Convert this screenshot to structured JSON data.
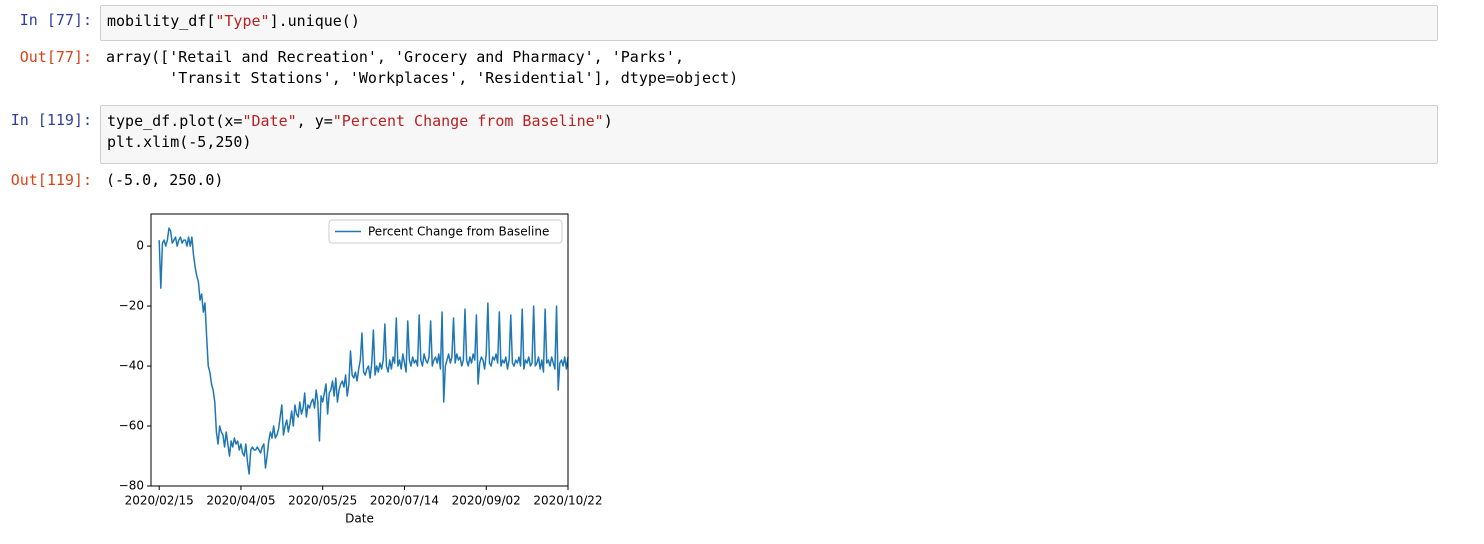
{
  "cells": [
    {
      "input_prompt": "In [77]:",
      "code": [
        [
          "mobility_df[",
          "\"Type\"",
          "].unique()"
        ]
      ],
      "output_prompt": "Out[77]:",
      "output": [
        "array(['Retail and Recreation', 'Grocery and Pharmacy', 'Parks',",
        "       'Transit Stations', 'Workplaces', 'Residential'], dtype=object)"
      ]
    },
    {
      "input_prompt": "In [119]:",
      "code": [
        [
          "type_df.plot(x=",
          "\"Date\"",
          ", y=",
          "\"Percent Change from Baseline\"",
          ")"
        ],
        [
          "plt.xlim(-5,250)"
        ]
      ],
      "output_prompt": "Out[119]:",
      "output": [
        "(-5.0, 250.0)"
      ]
    }
  ],
  "chart_data": {
    "type": "line",
    "xlabel": "Date",
    "legend": "upper right",
    "xlim": [
      -5,
      250
    ],
    "ylim": [
      -80,
      10.7
    ],
    "xticks": [
      {
        "value": 0,
        "label": "2020/02/15"
      },
      {
        "value": 50,
        "label": "2020/04/05"
      },
      {
        "value": 100,
        "label": "2020/05/25"
      },
      {
        "value": 150,
        "label": "2020/07/14"
      },
      {
        "value": 200,
        "label": "2020/09/02"
      },
      {
        "value": 250,
        "label": "2020/10/22"
      }
    ],
    "yticks": [
      {
        "value": -80,
        "label": "−80"
      },
      {
        "value": -60,
        "label": "−60"
      },
      {
        "value": -40,
        "label": "−40"
      },
      {
        "value": -20,
        "label": "−20"
      },
      0
    ],
    "x": [
      0,
      1,
      2,
      3,
      4,
      5,
      6,
      7,
      8,
      9,
      10,
      11,
      12,
      13,
      14,
      15,
      16,
      17,
      18,
      19,
      20,
      21,
      22,
      23,
      24,
      25,
      26,
      27,
      28,
      29,
      30,
      31,
      32,
      33,
      34,
      35,
      36,
      37,
      38,
      39,
      40,
      41,
      42,
      43,
      44,
      45,
      46,
      47,
      48,
      49,
      50,
      51,
      52,
      53,
      54,
      55,
      56,
      57,
      58,
      59,
      60,
      61,
      62,
      63,
      64,
      65,
      66,
      67,
      68,
      69,
      70,
      71,
      72,
      73,
      74,
      75,
      76,
      77,
      78,
      79,
      80,
      81,
      82,
      83,
      84,
      85,
      86,
      87,
      88,
      89,
      90,
      91,
      92,
      93,
      94,
      95,
      96,
      97,
      98,
      99,
      100,
      101,
      102,
      103,
      104,
      105,
      106,
      107,
      108,
      109,
      110,
      111,
      112,
      113,
      114,
      115,
      116,
      117,
      118,
      119,
      120,
      121,
      122,
      123,
      124,
      125,
      126,
      127,
      128,
      129,
      130,
      131,
      132,
      133,
      134,
      135,
      136,
      137,
      138,
      139,
      140,
      141,
      142,
      143,
      144,
      145,
      146,
      147,
      148,
      149,
      150,
      151,
      152,
      153,
      154,
      155,
      156,
      157,
      158,
      159,
      160,
      161,
      162,
      163,
      164,
      165,
      166,
      167,
      168,
      169,
      170,
      171,
      172,
      173,
      174,
      175,
      176,
      177,
      178,
      179,
      180,
      181,
      182,
      183,
      184,
      185,
      186,
      187,
      188,
      189,
      190,
      191,
      192,
      193,
      194,
      195,
      196,
      197,
      198,
      199,
      200,
      201,
      202,
      203,
      204,
      205,
      206,
      207,
      208,
      209,
      210,
      211,
      212,
      213,
      214,
      215,
      216,
      217,
      218,
      219,
      220,
      221,
      222,
      223,
      224,
      225,
      226,
      227,
      228,
      229,
      230,
      231,
      232,
      233,
      234,
      235,
      236,
      237,
      238,
      239,
      240,
      241,
      242,
      243,
      244,
      245,
      246,
      247,
      248,
      249,
      250
    ],
    "series": [
      {
        "name": "Percent Change from Baseline",
        "color": "#1f77b4",
        "values": [
          2,
          -14,
          1,
          2,
          0,
          2,
          6,
          5,
          1,
          2,
          3,
          0,
          2,
          3,
          1,
          2,
          2,
          0,
          3,
          0,
          3,
          -3,
          -7,
          -10,
          -12,
          -18,
          -16,
          -22,
          -19,
          -30,
          -40,
          -42,
          -46,
          -48,
          -52,
          -62,
          -66,
          -60,
          -62,
          -63,
          -67,
          -62,
          -66,
          -70,
          -65,
          -67,
          -64,
          -66,
          -65,
          -68,
          -66,
          -69,
          -70,
          -66,
          -72,
          -76,
          -68,
          -67,
          -68,
          -68,
          -67,
          -68,
          -69,
          -67,
          -66,
          -74,
          -70,
          -65,
          -62,
          -64,
          -60,
          -64,
          -63,
          -61,
          -57,
          -53,
          -63,
          -60,
          -58,
          -62,
          -59,
          -55,
          -60,
          -53,
          -56,
          -57,
          -52,
          -56,
          -54,
          -49,
          -57,
          -53,
          -54,
          -52,
          -51,
          -54,
          -48,
          -52,
          -65,
          -50,
          -52,
          -49,
          -46,
          -56,
          -49,
          -48,
          -45,
          -50,
          -44,
          -52,
          -48,
          -46,
          -45,
          -47,
          -43,
          -50,
          -46,
          -35,
          -43,
          -44,
          -42,
          -45,
          -41,
          -38,
          -29,
          -42,
          -43,
          -41,
          -40,
          -44,
          -39,
          -28,
          -43,
          -40,
          -42,
          -39,
          -41,
          -38,
          -26,
          -40,
          -42,
          -38,
          -41,
          -37,
          -39,
          -24,
          -40,
          -38,
          -41,
          -36,
          -39,
          -42,
          -25,
          -38,
          -40,
          -37,
          -39,
          -38,
          -40,
          -23,
          -38,
          -40,
          -36,
          -38,
          -39,
          -37,
          -25,
          -40,
          -38,
          -37,
          -39,
          -36,
          -41,
          -22,
          -52,
          -40,
          -38,
          -36,
          -39,
          -37,
          -24,
          -39,
          -36,
          -38,
          -37,
          -40,
          -38,
          -21,
          -38,
          -40,
          -37,
          -39,
          -36,
          -38,
          -23,
          -46,
          -39,
          -37,
          -38,
          -41,
          -36,
          -19,
          -39,
          -40,
          -37,
          -38,
          -36,
          -39,
          -22,
          -40,
          -38,
          -39,
          -37,
          -41,
          -38,
          -23,
          -39,
          -40,
          -38,
          -39,
          -37,
          -40,
          -21,
          -41,
          -38,
          -39,
          -37,
          -40,
          -39,
          -20,
          -40,
          -39,
          -37,
          -41,
          -38,
          -42,
          -21,
          -39,
          -38,
          -40,
          -37,
          -39,
          -41,
          -20,
          -48,
          -39,
          -38,
          -40,
          -37,
          -41,
          -37
        ]
      }
    ]
  }
}
